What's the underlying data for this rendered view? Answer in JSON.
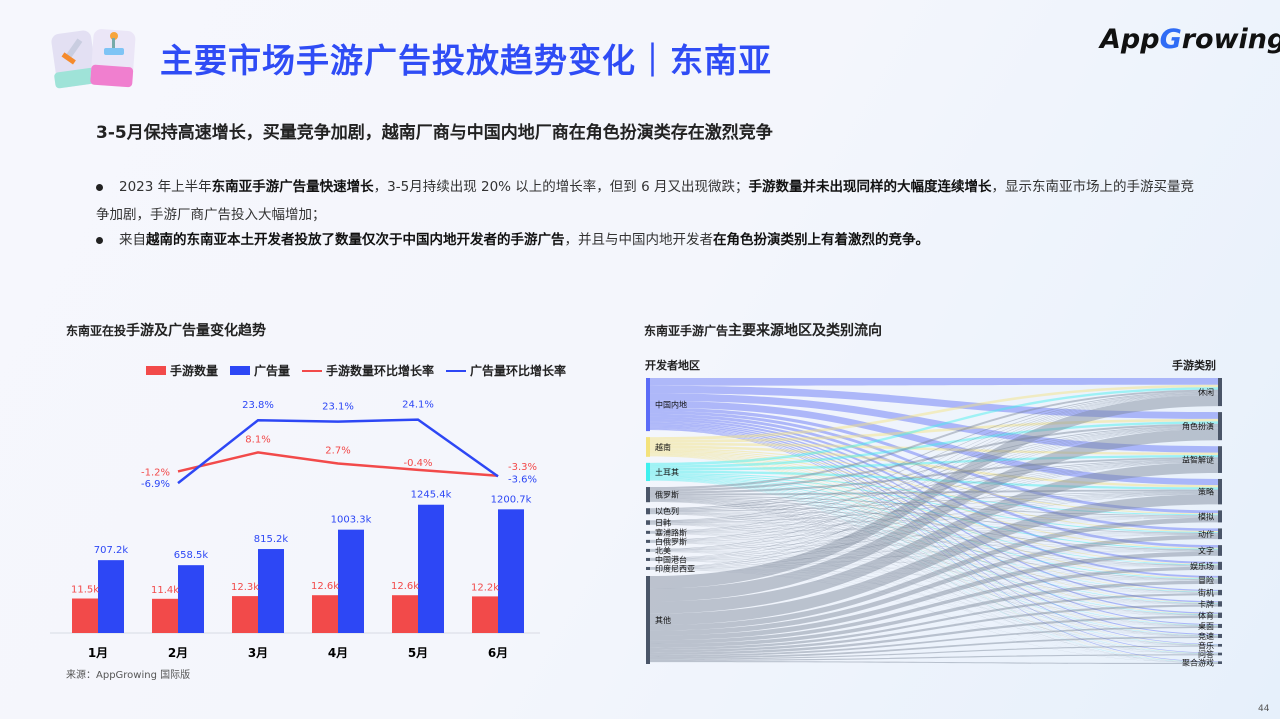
{
  "header": {
    "title": "主要市场手游广告投放趋势变化｜东南亚",
    "logo": "AppGrowing"
  },
  "subtitle": "3-5月保持高速增长，买量竞争加剧，越南厂商与中国内地厂商在角色扮演类存在激烈竞争",
  "bullets": [
    {
      "parts": [
        "2023 年上半年",
        "东南亚手游广告量快速增长",
        "，3-5月持续出现 20% 以上的增长率，但到 6 月又出现微跌；",
        "手游数量并未出现同样的大幅度连续增长",
        "，显示东南亚市场上的手游买量竞争加剧，手游厂商广告投入大幅增加；"
      ]
    },
    {
      "parts": [
        "来自",
        "越南的东南亚本土开发者投放了数量仅次于中国内地开发者的手游广告",
        "，并且与中国内地开发者",
        "在角色扮演类别上有着激烈的竞争。",
        ""
      ]
    }
  ],
  "chart_data": [
    {
      "type": "bar+line",
      "title_prefix": "东南亚在投",
      "title_bold": "手游及广告量变化趋势",
      "categories": [
        "1月",
        "2月",
        "3月",
        "4月",
        "5月",
        "6月"
      ],
      "series": [
        {
          "name": "手游数量",
          "kind": "bar",
          "color": "#f24a4a",
          "values": [
            11.5,
            11.4,
            12.3,
            12.6,
            12.6,
            12.2
          ],
          "labels": [
            "11.5k",
            "11.4k",
            "12.3k",
            "12.6k",
            "12.6k",
            "12.2k"
          ]
        },
        {
          "name": "广告量",
          "kind": "bar",
          "color": "#2d47f5",
          "values": [
            707.2,
            658.5,
            815.2,
            1003.3,
            1245.4,
            1200.7
          ],
          "labels": [
            "707.2k",
            "658.5k",
            "815.2k",
            "1003.3k",
            "1245.4k",
            "1200.7k"
          ]
        },
        {
          "name": "手游数量环比增长率",
          "kind": "line",
          "color": "#f24a4a",
          "values": [
            -1.2,
            8.1,
            2.7,
            -0.4,
            null,
            -3.3
          ],
          "labels": [
            "-1.2%",
            "8.1%",
            "2.7%",
            "-0.4%",
            "",
            "-3.3%"
          ]
        },
        {
          "name": "广告量环比增长率",
          "kind": "line",
          "color": "#2d47f5",
          "values": [
            -6.9,
            23.8,
            23.1,
            24.1,
            null,
            -3.6
          ],
          "labels": [
            "-6.9%",
            "23.8%",
            "23.1%",
            "24.1%",
            "",
            "-3.6%"
          ]
        }
      ],
      "legend": "top",
      "grid": false
    },
    {
      "type": "sankey",
      "title_prefix": "东南亚手游广告",
      "title_bold": "主要来源地区及类别流向",
      "left_header": "开发者地区",
      "right_header": "手游类别",
      "sources": [
        {
          "name": "中国内地",
          "value": 35,
          "color": "#5b6cf7"
        },
        {
          "name": "越南",
          "value": 13,
          "color": "#f3e27c"
        },
        {
          "name": "土耳其",
          "value": 12,
          "color": "#3ff0ee"
        },
        {
          "name": "俄罗斯",
          "value": 10,
          "color": "#4a5568"
        },
        {
          "name": "以色列",
          "value": 4,
          "color": "#4a5568"
        },
        {
          "name": "日韩",
          "value": 3,
          "color": "#4a5568"
        },
        {
          "name": "塞浦路斯",
          "value": 2,
          "color": "#4a5568"
        },
        {
          "name": "白俄罗斯",
          "value": 2,
          "color": "#4a5568"
        },
        {
          "name": "北美",
          "value": 2,
          "color": "#4a5568"
        },
        {
          "name": "中国港台",
          "value": 2,
          "color": "#4a5568"
        },
        {
          "name": "印度尼西亚",
          "value": 2,
          "color": "#4a5568"
        },
        {
          "name": "其他",
          "value": 58,
          "color": "#4a5568"
        }
      ],
      "targets": [
        {
          "name": "休闲",
          "value": 21
        },
        {
          "name": "角色扮演",
          "value": 21
        },
        {
          "name": "益智解谜",
          "value": 20
        },
        {
          "name": "策略",
          "value": 19
        },
        {
          "name": "模拟",
          "value": 9
        },
        {
          "name": "动作",
          "value": 8
        },
        {
          "name": "文字",
          "value": 8
        },
        {
          "name": "娱乐场",
          "value": 6
        },
        {
          "name": "冒险",
          "value": 6
        },
        {
          "name": "街机",
          "value": 4
        },
        {
          "name": "卡牌",
          "value": 4
        },
        {
          "name": "体育",
          "value": 4
        },
        {
          "name": "桌面",
          "value": 3
        },
        {
          "name": "竞速",
          "value": 3
        },
        {
          "name": "音乐",
          "value": 2
        },
        {
          "name": "问答",
          "value": 2
        },
        {
          "name": "聚合游戏",
          "value": 2
        }
      ]
    }
  ],
  "source_note": "来源：AppGrowing 国际版",
  "page_number": "44"
}
